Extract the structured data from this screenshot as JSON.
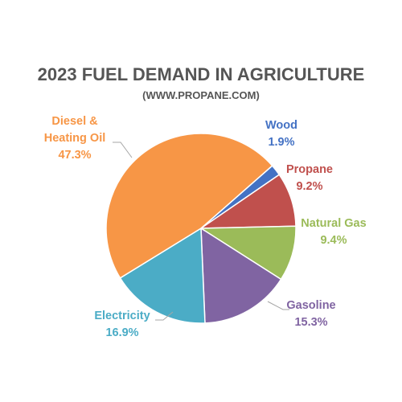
{
  "chart_data": {
    "type": "pie",
    "title": "2023 FUEL DEMAND IN AGRICULTURE",
    "subtitle": "(WWW.PROPANE.COM)",
    "unit": "%",
    "slices": [
      {
        "label_lines": [
          "Wood"
        ],
        "value": 1.9,
        "value_text": "1.9%",
        "color": "#4472C4"
      },
      {
        "label_lines": [
          "Propane"
        ],
        "value": 9.2,
        "value_text": "9.2%",
        "color": "#C0504D"
      },
      {
        "label_lines": [
          "Natural Gas"
        ],
        "value": 9.4,
        "value_text": "9.4%",
        "color": "#9BBB59"
      },
      {
        "label_lines": [
          "Gasoline"
        ],
        "value": 15.3,
        "value_text": "15.3%",
        "color": "#8064A2"
      },
      {
        "label_lines": [
          "Electricity"
        ],
        "value": 16.9,
        "value_text": "16.9%",
        "color": "#4BACC6"
      },
      {
        "label_lines": [
          "Diesel &",
          "Heating Oil"
        ],
        "value": 47.3,
        "value_text": "47.3%",
        "color": "#F79646"
      }
    ]
  }
}
